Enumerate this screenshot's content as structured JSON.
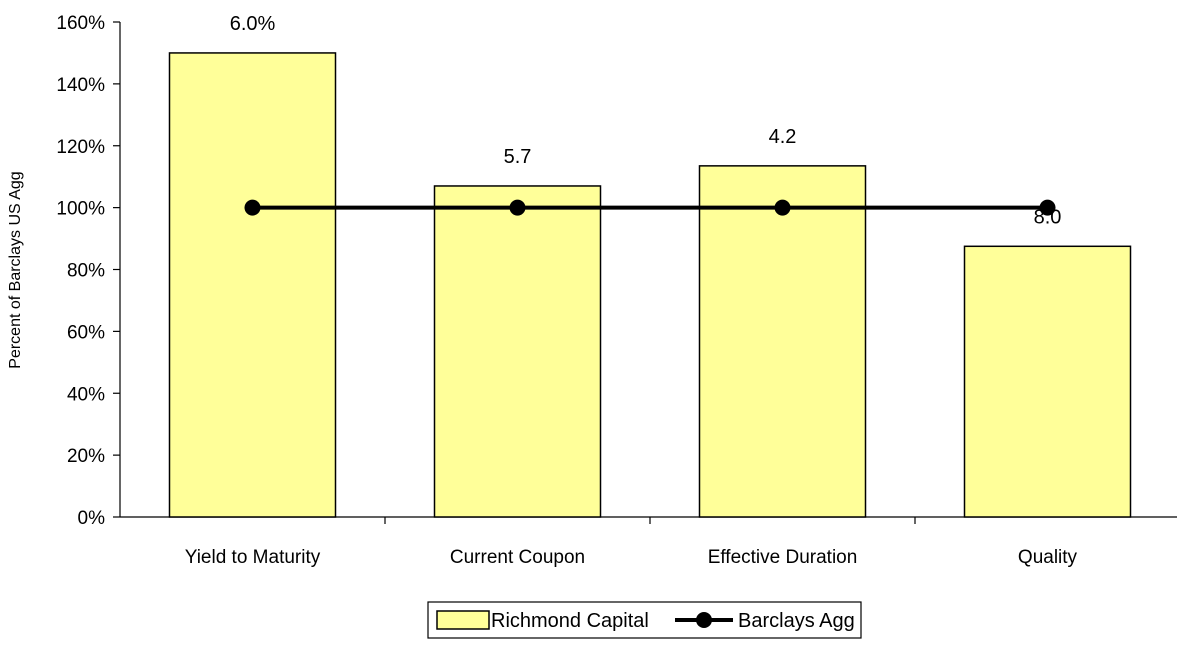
{
  "chart_data": {
    "type": "bar",
    "categories": [
      "Yield to Maturity",
      "Current Coupon",
      "Effective Duration",
      "Quality"
    ],
    "series": [
      {
        "name": "Richmond Capital",
        "kind": "bar",
        "values": [
          150,
          107,
          113.5,
          87.5
        ],
        "labels": [
          "6.0%",
          "5.7",
          "4.2",
          "8.0"
        ],
        "color": "#FFFF99"
      },
      {
        "name": "Barclays Agg",
        "kind": "line",
        "values": [
          100,
          100,
          100,
          100
        ],
        "color": "#000000"
      }
    ],
    "ylabel": "Percent of Barclays US Agg",
    "xlabel": "",
    "title": "",
    "ylim": [
      0,
      160
    ],
    "yticks": [
      0,
      20,
      40,
      60,
      80,
      100,
      120,
      140,
      160
    ],
    "ytick_format": "percent",
    "grid": false,
    "legend_position": "bottom-center"
  }
}
